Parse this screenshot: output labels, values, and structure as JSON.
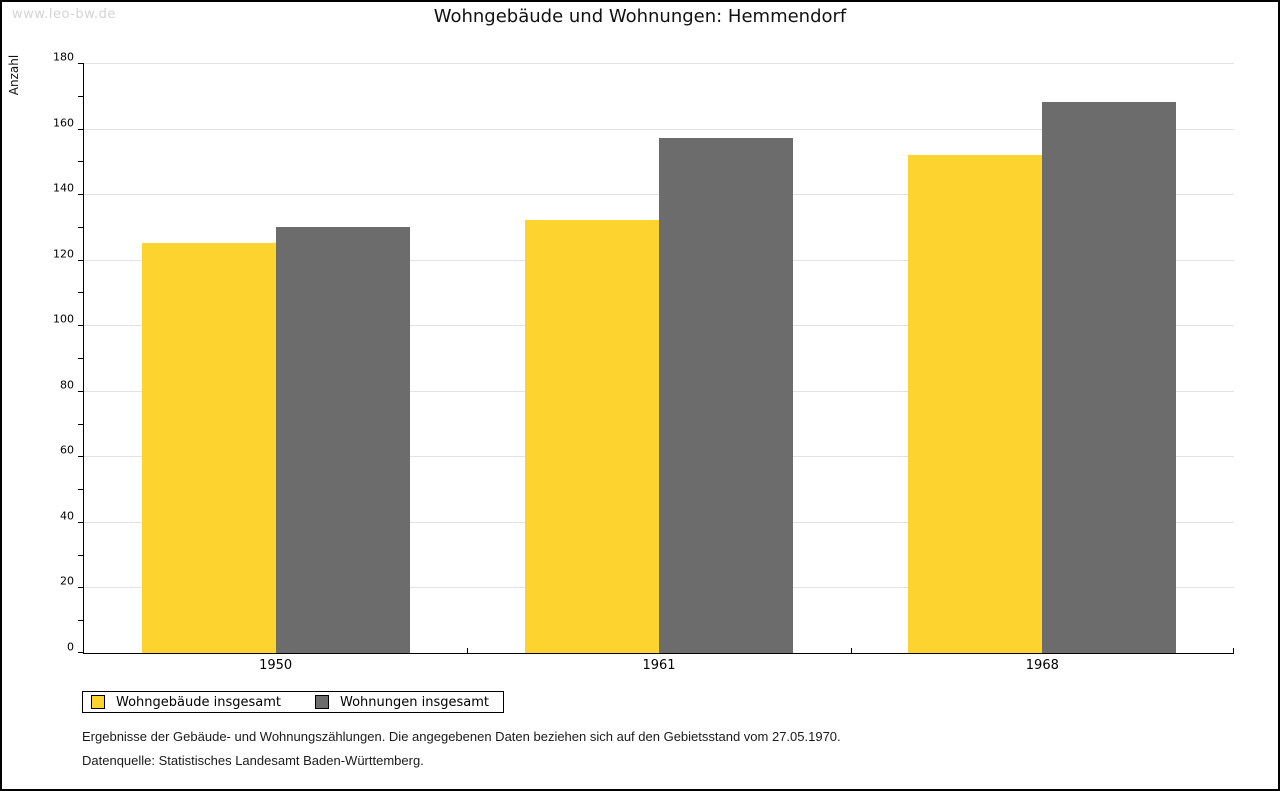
{
  "watermark": "www.leo-bw.de",
  "title": "Wohngebäude und Wohnungen: Hemmendorf",
  "chart_data": {
    "type": "bar",
    "title": "Wohngebäude und Wohnungen: Hemmendorf",
    "categories": [
      "1950",
      "1961",
      "1968"
    ],
    "series": [
      {
        "name": "Wohngebäude insgesamt",
        "color": "#FCD32F",
        "values": [
          125,
          132,
          152
        ]
      },
      {
        "name": "Wohnungen insgesamt",
        "color": "#6C6C6C",
        "values": [
          130,
          157,
          168
        ]
      }
    ],
    "xlabel": "",
    "ylabel": "Anzahl",
    "ylim": [
      0,
      180
    ],
    "ytick_major_step": 20,
    "ytick_minor_step": 10,
    "grid": "horizontal-major",
    "gridline_color": "#e2e2e2",
    "legend_position": "bottom-left"
  },
  "footnotes": [
    "Ergebnisse der Gebäude- und Wohnungszählungen. Die angegebenen Daten beziehen sich auf den Gebietsstand vom 27.05.1970.",
    "Datenquelle: Statistisches Landesamt Baden-Württemberg."
  ]
}
